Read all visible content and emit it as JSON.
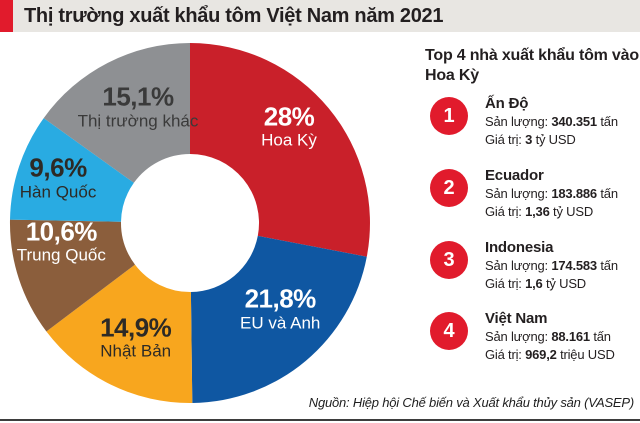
{
  "header": {
    "title": "Thị trường xuất khẩu tôm Việt Nam năm 2021"
  },
  "chart_data": {
    "type": "pie",
    "donut": true,
    "title": "Thị trường xuất khẩu tôm Việt Nam năm 2021",
    "unit": "percent",
    "direction": "clockwise",
    "start_angle_deg": 0,
    "inner_radius_ratio": 0.383,
    "segments": [
      {
        "label": "Hoa Kỳ",
        "value": 28,
        "display": "28%",
        "color": "#c9202a",
        "label_color": "#ffffff",
        "label_radius": 135,
        "label_offset": [
          -5,
          -10
        ]
      },
      {
        "label": "EU và Anh",
        "value": 21.8,
        "display": "21,8%",
        "color": "#0f57a2",
        "label_color": "#ffffff",
        "label_radius": 128,
        "label_offset": [
          8,
          -12
        ]
      },
      {
        "label": "Nhật Bản",
        "value": 14.9,
        "display": "14,9%",
        "color": "#f8a61e",
        "label_color": "#2d2a26",
        "label_radius": 128,
        "label_offset": [
          2,
          0
        ]
      },
      {
        "label": "Trung Quốc",
        "value": 10.6,
        "display": "10,6%",
        "color": "#8b5e3c",
        "label_color": "#ffffff",
        "label_radius": 129,
        "label_offset": [
          -6,
          -21
        ]
      },
      {
        "label": "Hàn Quốc",
        "value": 9.6,
        "display": "9,6%",
        "color": "#29abe2",
        "label_color": "#2d2a26",
        "label_radius": 139,
        "label_offset": [
          0,
          -1
        ]
      },
      {
        "label": "Thị trường khác",
        "value": 15.1,
        "display": "15,1%",
        "color": "#8e9093",
        "label_color": "#3a3a3a",
        "label_radius": 127,
        "label_offset": [
          6,
          -3
        ]
      }
    ]
  },
  "panel": {
    "title": "Top 4 nhà xuất khẩu tôm vào Hoa Kỳ",
    "items": [
      {
        "rank": "1",
        "name": "Ấn Độ",
        "production": {
          "label": "Sản lượng:",
          "value": "340.351",
          "unit": "tấn"
        },
        "worth": {
          "label": "Giá trị:",
          "value": "3",
          "unit": "tỷ USD"
        }
      },
      {
        "rank": "2",
        "name": "Ecuador",
        "production": {
          "label": "Sản lượng:",
          "value": "183.886",
          "unit": "tấn"
        },
        "worth": {
          "label": "Giá trị:",
          "value": "1,36",
          "unit": "tỷ USD"
        }
      },
      {
        "rank": "3",
        "name": "Indonesia",
        "production": {
          "label": "Sản lượng:",
          "value": "174.583",
          "unit": "tấn"
        },
        "worth": {
          "label": "Giá trị:",
          "value": "1,6",
          "unit": "tỷ USD"
        }
      },
      {
        "rank": "4",
        "name": "Việt Nam",
        "production": {
          "label": "Sản lượng:",
          "value": "88.161",
          "unit": "tấn"
        },
        "worth": {
          "label": "Giá trị:",
          "value": "969,2",
          "unit": "triệu USD"
        }
      }
    ]
  },
  "source": "Nguồn: Hiệp hội Chế biến và Xuất khẩu thủy sản (VASEP)",
  "colors": {
    "accent_red": "#e11b2c",
    "rank_badge_red": "#e11b2c",
    "header_band": "#e8e6e2",
    "text_dark": "#231f20",
    "bottom_rule": "#3d3d3d"
  }
}
